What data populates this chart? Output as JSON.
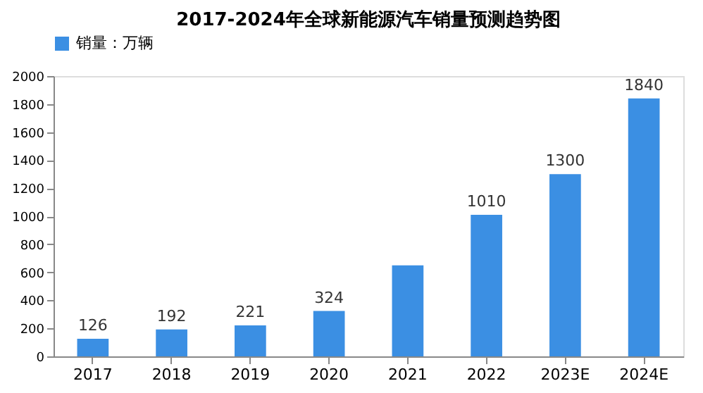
{
  "chart_data": {
    "type": "bar",
    "title": "2017-2024年全球新能源汽车销量预测趋势图",
    "categories": [
      "2017",
      "2018",
      "2019",
      "2020",
      "2021",
      "2022",
      "2023E",
      "2024E"
    ],
    "series": [
      {
        "name": "销量：万辆",
        "color": "#3b8fe3",
        "values": [
          126,
          192,
          221,
          324,
          650,
          1010,
          1300,
          1840
        ],
        "value_labels": [
          "126",
          "192",
          "221",
          "324",
          null,
          "1010",
          "1300",
          "1840"
        ]
      }
    ],
    "ylim": [
      0,
      2000
    ],
    "yticks": [
      0,
      200,
      400,
      600,
      800,
      1000,
      1200,
      1400,
      1600,
      1800,
      2000
    ],
    "grid": false,
    "legend": "top"
  }
}
